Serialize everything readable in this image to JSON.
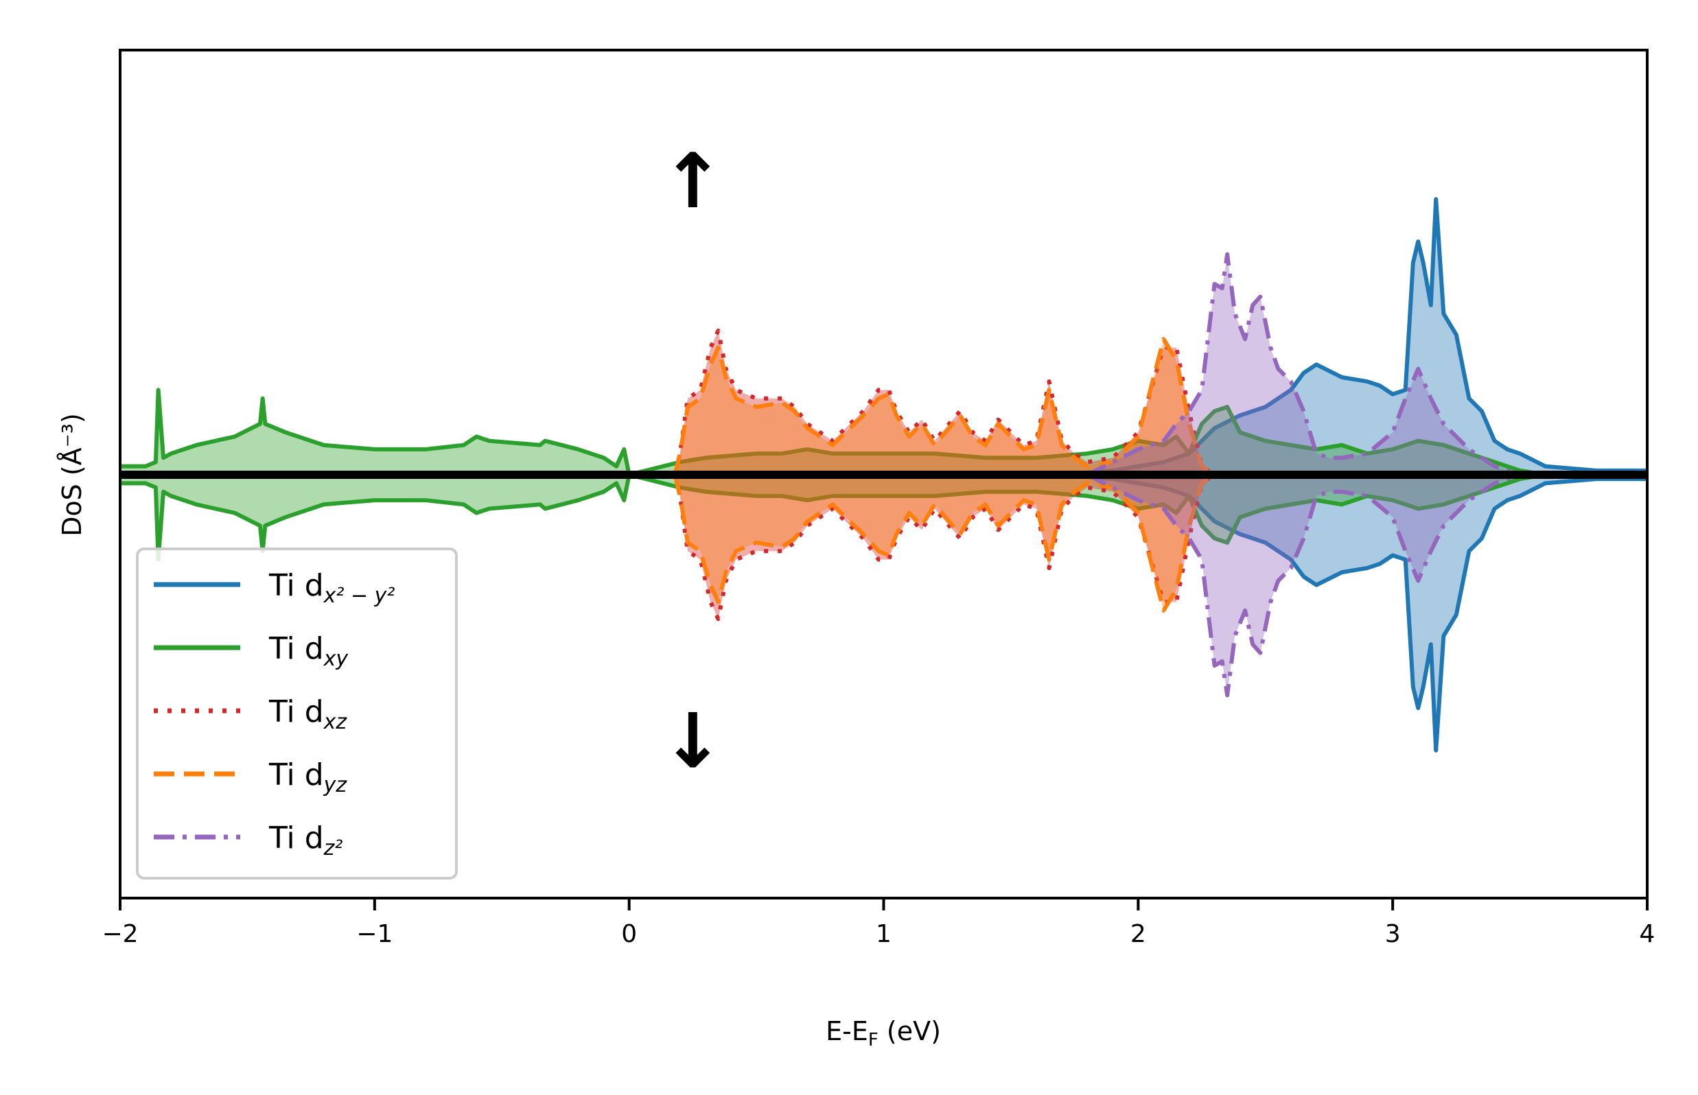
{
  "chart_data": {
    "type": "area",
    "xlabel": "E-E_F (eV)",
    "xlabel_parts": {
      "main": "E-E",
      "sub": "F",
      "tail": " (eV)"
    },
    "ylabel": "DoS (Å⁻³)",
    "xlim": [
      -2,
      4
    ],
    "ylim": [
      -1,
      1
    ],
    "x_ticks": [
      -2,
      -1,
      0,
      1,
      2,
      3,
      4
    ],
    "x_tick_labels": [
      "−2",
      "−1",
      "0",
      "1",
      "2",
      "3",
      "4"
    ],
    "y_ticks_shown": false,
    "legend_position": "lower-left",
    "spin_up_marker": "↑",
    "spin_down_marker": "↓",
    "spin_marker_x": 0.25,
    "series": [
      {
        "name": "Ti d_{x²−y²}",
        "legend_main": "Ti d",
        "legend_sub": "x² − y²",
        "color": "#1f77b4",
        "style": "solid",
        "points": [
          [
            1.7,
            0
          ],
          [
            1.9,
            0.01
          ],
          [
            2.0,
            0.02
          ],
          [
            2.1,
            0.03
          ],
          [
            2.2,
            0.05
          ],
          [
            2.3,
            0.11
          ],
          [
            2.4,
            0.14
          ],
          [
            2.5,
            0.16
          ],
          [
            2.6,
            0.2
          ],
          [
            2.65,
            0.24
          ],
          [
            2.7,
            0.26
          ],
          [
            2.8,
            0.23
          ],
          [
            2.9,
            0.22
          ],
          [
            2.95,
            0.21
          ],
          [
            3.0,
            0.19
          ],
          [
            3.05,
            0.2
          ],
          [
            3.08,
            0.5
          ],
          [
            3.1,
            0.55
          ],
          [
            3.12,
            0.5
          ],
          [
            3.15,
            0.4
          ],
          [
            3.17,
            0.65
          ],
          [
            3.2,
            0.38
          ],
          [
            3.25,
            0.33
          ],
          [
            3.3,
            0.18
          ],
          [
            3.35,
            0.15
          ],
          [
            3.4,
            0.08
          ],
          [
            3.45,
            0.06
          ],
          [
            3.5,
            0.05
          ],
          [
            3.6,
            0.02
          ],
          [
            3.8,
            0.01
          ],
          [
            4.0,
            0.01
          ]
        ]
      },
      {
        "name": "Ti d_{xy}",
        "legend_main": "Ti d",
        "legend_sub": "xy",
        "color": "#2ca02c",
        "style": "solid",
        "points": [
          [
            -2.0,
            0.02
          ],
          [
            -1.9,
            0.02
          ],
          [
            -1.86,
            0.03
          ],
          [
            -1.85,
            0.2
          ],
          [
            -1.83,
            0.04
          ],
          [
            -1.8,
            0.05
          ],
          [
            -1.7,
            0.07
          ],
          [
            -1.55,
            0.09
          ],
          [
            -1.45,
            0.12
          ],
          [
            -1.44,
            0.18
          ],
          [
            -1.43,
            0.12
          ],
          [
            -1.35,
            0.1
          ],
          [
            -1.2,
            0.07
          ],
          [
            -1.0,
            0.06
          ],
          [
            -0.8,
            0.06
          ],
          [
            -0.65,
            0.07
          ],
          [
            -0.6,
            0.09
          ],
          [
            -0.55,
            0.08
          ],
          [
            -0.35,
            0.07
          ],
          [
            -0.33,
            0.08
          ],
          [
            -0.2,
            0.06
          ],
          [
            -0.1,
            0.04
          ],
          [
            -0.05,
            0.02
          ],
          [
            -0.02,
            0.06
          ],
          [
            0.0,
            0.0
          ],
          [
            0.2,
            0.03
          ],
          [
            0.3,
            0.04
          ],
          [
            0.5,
            0.05
          ],
          [
            0.6,
            0.05
          ],
          [
            0.7,
            0.06
          ],
          [
            0.8,
            0.05
          ],
          [
            1.0,
            0.05
          ],
          [
            1.2,
            0.05
          ],
          [
            1.4,
            0.04
          ],
          [
            1.6,
            0.04
          ],
          [
            1.8,
            0.05
          ],
          [
            1.9,
            0.06
          ],
          [
            2.0,
            0.08
          ],
          [
            2.1,
            0.07
          ],
          [
            2.15,
            0.09
          ],
          [
            2.2,
            0.05
          ],
          [
            2.25,
            0.12
          ],
          [
            2.3,
            0.15
          ],
          [
            2.35,
            0.16
          ],
          [
            2.4,
            0.1
          ],
          [
            2.5,
            0.08
          ],
          [
            2.6,
            0.07
          ],
          [
            2.7,
            0.06
          ],
          [
            2.8,
            0.07
          ],
          [
            2.9,
            0.05
          ],
          [
            3.0,
            0.06
          ],
          [
            3.1,
            0.08
          ],
          [
            3.2,
            0.07
          ],
          [
            3.3,
            0.05
          ],
          [
            3.4,
            0.03
          ],
          [
            3.5,
            0.01
          ],
          [
            3.6,
            0.0
          ]
        ]
      },
      {
        "name": "Ti d_{xz}",
        "legend_main": "Ti d",
        "legend_sub": "xz",
        "color": "#d62728",
        "style": "dotted",
        "points": [
          [
            0.18,
            0.0
          ],
          [
            0.2,
            0.05
          ],
          [
            0.23,
            0.18
          ],
          [
            0.28,
            0.2
          ],
          [
            0.32,
            0.3
          ],
          [
            0.35,
            0.34
          ],
          [
            0.38,
            0.25
          ],
          [
            0.42,
            0.2
          ],
          [
            0.5,
            0.18
          ],
          [
            0.6,
            0.18
          ],
          [
            0.65,
            0.16
          ],
          [
            0.7,
            0.12
          ],
          [
            0.75,
            0.1
          ],
          [
            0.8,
            0.08
          ],
          [
            0.85,
            0.11
          ],
          [
            0.92,
            0.15
          ],
          [
            0.98,
            0.2
          ],
          [
            1.02,
            0.2
          ],
          [
            1.05,
            0.15
          ],
          [
            1.1,
            0.1
          ],
          [
            1.15,
            0.13
          ],
          [
            1.2,
            0.08
          ],
          [
            1.3,
            0.15
          ],
          [
            1.35,
            0.1
          ],
          [
            1.4,
            0.08
          ],
          [
            1.45,
            0.13
          ],
          [
            1.5,
            0.1
          ],
          [
            1.55,
            0.07
          ],
          [
            1.6,
            0.08
          ],
          [
            1.65,
            0.22
          ],
          [
            1.7,
            0.08
          ],
          [
            1.75,
            0.05
          ],
          [
            1.8,
            0.03
          ],
          [
            1.9,
            0.04
          ],
          [
            2.0,
            0.1
          ],
          [
            2.1,
            0.3
          ],
          [
            2.15,
            0.3
          ],
          [
            2.2,
            0.15
          ],
          [
            2.25,
            0.02
          ],
          [
            2.3,
            0.0
          ]
        ]
      },
      {
        "name": "Ti d_{yz}",
        "legend_main": "Ti d",
        "legend_sub": "yz",
        "color": "#ff7f0e",
        "style": "dashed",
        "points": [
          [
            0.18,
            0.0
          ],
          [
            0.2,
            0.05
          ],
          [
            0.23,
            0.16
          ],
          [
            0.28,
            0.18
          ],
          [
            0.32,
            0.26
          ],
          [
            0.35,
            0.3
          ],
          [
            0.38,
            0.23
          ],
          [
            0.42,
            0.18
          ],
          [
            0.5,
            0.16
          ],
          [
            0.6,
            0.17
          ],
          [
            0.65,
            0.15
          ],
          [
            0.7,
            0.11
          ],
          [
            0.75,
            0.09
          ],
          [
            0.8,
            0.07
          ],
          [
            0.85,
            0.1
          ],
          [
            0.92,
            0.14
          ],
          [
            0.98,
            0.18
          ],
          [
            1.02,
            0.19
          ],
          [
            1.05,
            0.14
          ],
          [
            1.1,
            0.09
          ],
          [
            1.15,
            0.12
          ],
          [
            1.2,
            0.07
          ],
          [
            1.3,
            0.14
          ],
          [
            1.35,
            0.09
          ],
          [
            1.4,
            0.07
          ],
          [
            1.45,
            0.12
          ],
          [
            1.5,
            0.09
          ],
          [
            1.55,
            0.06
          ],
          [
            1.6,
            0.07
          ],
          [
            1.65,
            0.2
          ],
          [
            1.7,
            0.07
          ],
          [
            1.75,
            0.04
          ],
          [
            1.8,
            0.02
          ],
          [
            1.9,
            0.03
          ],
          [
            2.0,
            0.09
          ],
          [
            2.1,
            0.32
          ],
          [
            2.15,
            0.27
          ],
          [
            2.2,
            0.12
          ],
          [
            2.25,
            0.02
          ],
          [
            2.3,
            0.0
          ]
        ]
      },
      {
        "name": "Ti d_{z²}",
        "legend_main": "Ti d",
        "legend_sub": "z²",
        "color": "#9467bd",
        "style": "dashdot",
        "points": [
          [
            1.8,
            0.0
          ],
          [
            1.9,
            0.03
          ],
          [
            2.0,
            0.06
          ],
          [
            2.1,
            0.08
          ],
          [
            2.15,
            0.12
          ],
          [
            2.2,
            0.15
          ],
          [
            2.25,
            0.2
          ],
          [
            2.3,
            0.45
          ],
          [
            2.33,
            0.44
          ],
          [
            2.35,
            0.52
          ],
          [
            2.38,
            0.38
          ],
          [
            2.42,
            0.32
          ],
          [
            2.45,
            0.4
          ],
          [
            2.48,
            0.42
          ],
          [
            2.52,
            0.3
          ],
          [
            2.55,
            0.25
          ],
          [
            2.6,
            0.22
          ],
          [
            2.65,
            0.15
          ],
          [
            2.7,
            0.05
          ],
          [
            2.75,
            0.04
          ],
          [
            2.8,
            0.04
          ],
          [
            2.9,
            0.05
          ],
          [
            3.0,
            0.1
          ],
          [
            3.05,
            0.18
          ],
          [
            3.1,
            0.25
          ],
          [
            3.15,
            0.18
          ],
          [
            3.2,
            0.12
          ],
          [
            3.3,
            0.06
          ],
          [
            3.4,
            0.02
          ],
          [
            3.5,
            0.0
          ]
        ]
      }
    ]
  }
}
